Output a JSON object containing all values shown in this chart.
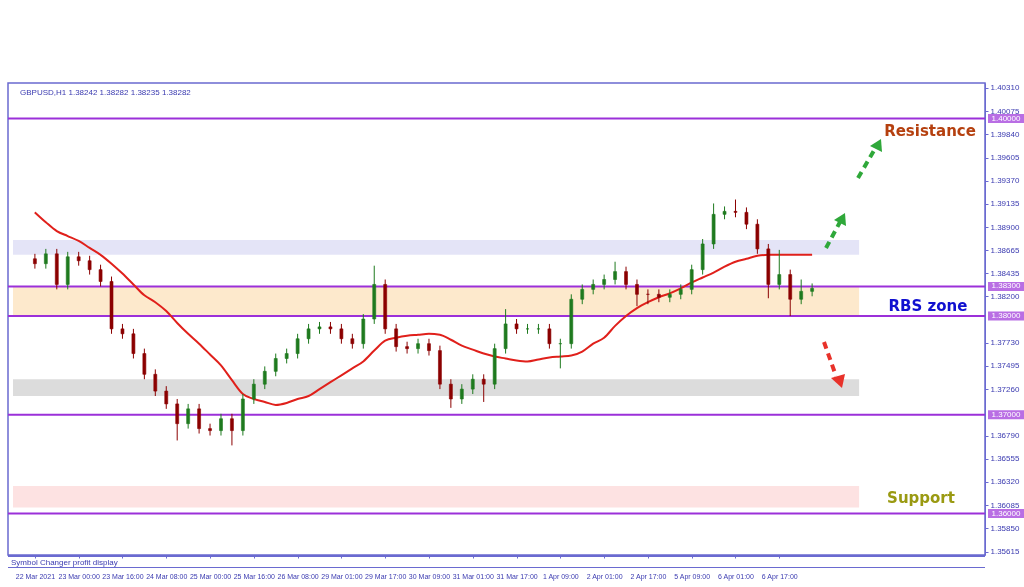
{
  "chart_data": {
    "type": "candlestick",
    "title": "GBPUSD,H1  1.38242 1.38282 1.38235 1.38282",
    "categories": [
      "22 Mar 2021",
      null,
      null,
      null,
      "23 Mar 00:00",
      null,
      null,
      null,
      "23 Mar 16:00",
      null,
      null,
      null,
      "24 Mar 08:00",
      null,
      null,
      null,
      "25 Mar 00:00",
      null,
      null,
      null,
      "25 Mar 16:00",
      null,
      null,
      null,
      "26 Mar 08:00",
      null,
      null,
      null,
      "29 Mar 01:00",
      null,
      null,
      null,
      "29 Mar 17:00",
      null,
      null,
      null,
      "30 Mar 09:00",
      null,
      null,
      null,
      "31 Mar 01:00",
      null,
      null,
      null,
      "31 Mar 17:00",
      null,
      null,
      null,
      "1 Apr 09:00",
      null,
      null,
      null,
      "2 Apr 01:00",
      null,
      null,
      null,
      "2 Apr 17:00",
      null,
      null,
      null,
      "5 Apr 09:00",
      null,
      null,
      null,
      "6 Apr 01:00",
      null,
      null,
      null,
      "6 Apr 17:00",
      null,
      null,
      null
    ],
    "ohlc": [
      [
        1.3858,
        1.3863,
        1.3848,
        1.3853
      ],
      [
        1.3853,
        1.3868,
        1.3848,
        1.3863
      ],
      [
        1.3863,
        1.3868,
        1.3827,
        1.3832
      ],
      [
        1.3832,
        1.3865,
        1.3827,
        1.386
      ],
      [
        1.386,
        1.3865,
        1.3851,
        1.3856
      ],
      [
        1.3856,
        1.3861,
        1.3842,
        1.3847
      ],
      [
        1.3847,
        1.3852,
        1.383,
        1.3835
      ],
      [
        1.3835,
        1.384,
        1.3782,
        1.3787
      ],
      [
        1.3787,
        1.3792,
        1.3777,
        1.3782
      ],
      [
        1.3782,
        1.3787,
        1.3757,
        1.3762
      ],
      [
        1.3762,
        1.3767,
        1.3736,
        1.3741
      ],
      [
        1.3741,
        1.3746,
        1.3719,
        1.3724
      ],
      [
        1.3724,
        1.3729,
        1.3706,
        1.3711
      ],
      [
        1.3711,
        1.3716,
        1.3674,
        1.3691
      ],
      [
        1.3691,
        1.3711,
        1.3686,
        1.3706
      ],
      [
        1.3706,
        1.3711,
        1.3681,
        1.3686
      ],
      [
        1.3686,
        1.3691,
        1.3679,
        1.3684
      ],
      [
        1.3684,
        1.3701,
        1.3679,
        1.3696
      ],
      [
        1.3696,
        1.3701,
        1.3669,
        1.3684
      ],
      [
        1.3684,
        1.3721,
        1.3679,
        1.3716
      ],
      [
        1.3716,
        1.3736,
        1.3711,
        1.3731
      ],
      [
        1.3731,
        1.3749,
        1.3726,
        1.3744
      ],
      [
        1.3744,
        1.3762,
        1.3739,
        1.3757
      ],
      [
        1.3757,
        1.3767,
        1.3752,
        1.3762
      ],
      [
        1.3762,
        1.3782,
        1.3757,
        1.3777
      ],
      [
        1.3777,
        1.3792,
        1.3772,
        1.3787
      ],
      [
        1.3787,
        1.3794,
        1.3782,
        1.3789
      ],
      [
        1.3789,
        1.3794,
        1.3782,
        1.3787
      ],
      [
        1.3787,
        1.3792,
        1.3772,
        1.3777
      ],
      [
        1.3777,
        1.3782,
        1.3767,
        1.3772
      ],
      [
        1.3772,
        1.3802,
        1.3767,
        1.3797
      ],
      [
        1.3797,
        1.3851,
        1.3792,
        1.3832
      ],
      [
        1.3832,
        1.3837,
        1.3782,
        1.3787
      ],
      [
        1.3787,
        1.3792,
        1.3764,
        1.3769
      ],
      [
        1.3769,
        1.3774,
        1.3762,
        1.3767
      ],
      [
        1.3767,
        1.3777,
        1.3762,
        1.3772
      ],
      [
        1.3772,
        1.3777,
        1.376,
        1.3765
      ],
      [
        1.3765,
        1.377,
        1.3726,
        1.3731
      ],
      [
        1.3731,
        1.3736,
        1.3707,
        1.3716
      ],
      [
        1.3716,
        1.3731,
        1.3711,
        1.3726
      ],
      [
        1.3726,
        1.3741,
        1.3721,
        1.3736
      ],
      [
        1.3736,
        1.3741,
        1.3713,
        1.3731
      ],
      [
        1.3731,
        1.3772,
        1.3726,
        1.3767
      ],
      [
        1.3767,
        1.3807,
        1.3762,
        1.3792
      ],
      [
        1.3792,
        1.3797,
        1.3782,
        1.3787
      ],
      [
        1.3787,
        1.3792,
        1.3782,
        1.3787
      ],
      [
        1.3787,
        1.3792,
        1.3782,
        1.3787
      ],
      [
        1.3787,
        1.3792,
        1.3767,
        1.3772
      ],
      [
        1.3772,
        1.3777,
        1.3747,
        1.3772
      ],
      [
        1.3772,
        1.3822,
        1.3767,
        1.3817
      ],
      [
        1.3817,
        1.3832,
        1.3812,
        1.3827
      ],
      [
        1.3827,
        1.3837,
        1.3822,
        1.3832
      ],
      [
        1.3832,
        1.3842,
        1.3827,
        1.3837
      ],
      [
        1.3837,
        1.3855,
        1.3832,
        1.3845
      ],
      [
        1.3845,
        1.385,
        1.3827,
        1.3832
      ],
      [
        1.3832,
        1.3837,
        1.381,
        1.3822
      ],
      [
        1.3822,
        1.3827,
        1.3812,
        1.3822
      ],
      [
        1.3822,
        1.3827,
        1.3814,
        1.3819
      ],
      [
        1.3819,
        1.3827,
        1.3814,
        1.3822
      ],
      [
        1.3822,
        1.3832,
        1.3817,
        1.3827
      ],
      [
        1.3827,
        1.3852,
        1.3822,
        1.3847
      ],
      [
        1.3847,
        1.3878,
        1.3842,
        1.3873
      ],
      [
        1.3873,
        1.3914,
        1.3868,
        1.3903
      ],
      [
        1.3903,
        1.3911,
        1.3898,
        1.3906
      ],
      [
        1.3906,
        1.3918,
        1.39,
        1.3905
      ],
      [
        1.3905,
        1.391,
        1.3888,
        1.3893
      ],
      [
        1.3893,
        1.3898,
        1.3863,
        1.3868
      ],
      [
        1.3868,
        1.3873,
        1.3818,
        1.3832
      ],
      [
        1.3832,
        1.3867,
        1.3827,
        1.3842
      ],
      [
        1.3842,
        1.3847,
        1.38,
        1.3817
      ],
      [
        1.3817,
        1.3837,
        1.3812,
        1.3825
      ],
      [
        1.3825,
        1.3833,
        1.382,
        1.3828
      ]
    ],
    "colors": [
      "#8b0000",
      "#1f7a1f",
      "#8b0000",
      "#1f7a1f",
      "#8b0000",
      "#8b0000",
      "#8b0000",
      "#8b0000",
      "#8b0000",
      "#8b0000",
      "#8b0000",
      "#8b0000",
      "#8b0000",
      "#8b0000",
      "#1f7a1f",
      "#8b0000",
      "#8b0000",
      "#1f7a1f",
      "#8b0000",
      "#1f7a1f",
      "#1f7a1f",
      "#1f7a1f",
      "#1f7a1f",
      "#1f7a1f",
      "#1f7a1f",
      "#1f7a1f",
      "#1f7a1f",
      "#8b0000",
      "#8b0000",
      "#8b0000",
      "#1f7a1f",
      "#1f7a1f",
      "#8b0000",
      "#8b0000",
      "#8b0000",
      "#1f7a1f",
      "#8b0000",
      "#8b0000",
      "#8b0000",
      "#1f7a1f",
      "#1f7a1f",
      "#8b0000",
      "#1f7a1f",
      "#1f7a1f",
      "#8b0000",
      "#1f7a1f",
      "#1f7a1f",
      "#8b0000",
      "#1f7a1f",
      "#1f7a1f",
      "#1f7a1f",
      "#1f7a1f",
      "#1f7a1f",
      "#1f7a1f",
      "#8b0000",
      "#8b0000",
      "#8b0000",
      "#8b0000",
      "#1f7a1f",
      "#1f7a1f",
      "#1f7a1f",
      "#1f7a1f",
      "#1f7a1f",
      "#1f7a1f",
      "#8b0000",
      "#8b0000",
      "#8b0000",
      "#8b0000",
      "#1f7a1f",
      "#8b0000",
      "#1f7a1f",
      "#1f7a1f"
    ],
    "series": [
      {
        "type": "line",
        "color": "#e0201b",
        "values": [
          1.3905,
          1.3895,
          1.3886,
          1.3881,
          1.3876,
          1.3869,
          1.3862,
          1.3853,
          1.3843,
          1.3832,
          1.3821,
          1.3814,
          1.3805,
          1.3793,
          1.3782,
          1.3772,
          1.3761,
          1.375,
          1.3735,
          1.3721,
          1.3716,
          1.3713,
          1.371,
          1.3712,
          1.3716,
          1.3719,
          1.3726,
          1.3733,
          1.374,
          1.3747,
          1.3754,
          1.3765,
          1.3775,
          1.3778,
          1.378,
          1.3781,
          1.3782,
          1.3781,
          1.3776,
          1.377,
          1.3766,
          1.3762,
          1.3759,
          1.3757,
          1.3755,
          1.3754,
          1.3756,
          1.3758,
          1.3759,
          1.376,
          1.3764,
          1.3772,
          1.3778,
          1.379,
          1.38,
          1.3808,
          1.3814,
          1.3819,
          1.3823,
          1.3828,
          1.3834,
          1.3839,
          1.3844,
          1.385,
          1.3855,
          1.3858,
          1.3861,
          1.3862,
          1.3862,
          1.3862,
          1.3862,
          1.3862
        ]
      }
    ],
    "ylim": [
      1.3558,
      1.4036
    ],
    "yticks": [
      {
        "value": 1.4031,
        "label": "1.40310"
      },
      {
        "value": 1.40075,
        "label": "1.40075"
      },
      {
        "value": 1.3984,
        "label": "1.39840"
      },
      {
        "value": 1.39605,
        "label": "1.39605"
      },
      {
        "value": 1.3937,
        "label": "1.39370"
      },
      {
        "value": 1.39135,
        "label": "1.39135"
      },
      {
        "value": 1.389,
        "label": "1.38900"
      },
      {
        "value": 1.38665,
        "label": "1.38665"
      },
      {
        "value": 1.38435,
        "label": "1.38435"
      },
      {
        "value": 1.382,
        "label": "1.38200"
      },
      {
        "value": 1.3773,
        "label": "1.37730"
      },
      {
        "value": 1.37495,
        "label": "1.37495"
      },
      {
        "value": 1.3726,
        "label": "1.37260"
      },
      {
        "value": 1.3679,
        "label": "1.36790"
      },
      {
        "value": 1.36555,
        "label": "1.36555"
      },
      {
        "value": 1.3632,
        "label": "1.36320"
      },
      {
        "value": 1.36085,
        "label": "1.36085"
      },
      {
        "value": 1.3585,
        "label": "1.35850"
      },
      {
        "value": 1.35615,
        "label": "1.35615"
      }
    ],
    "ref_lines": [
      {
        "axis": "y",
        "value": 1.4,
        "label": "1.40000",
        "color": "#9b30d9"
      },
      {
        "axis": "y",
        "value": 1.383,
        "label": "1.38300",
        "color": "#9b30d9"
      },
      {
        "axis": "y",
        "value": 1.38,
        "label": "1.38000",
        "color": "#9b30d9"
      },
      {
        "axis": "y",
        "value": 1.37,
        "label": "1.37000",
        "color": "#9b30d9"
      },
      {
        "axis": "y",
        "value": 1.36,
        "label": "1.36000",
        "color": "#9b30d9"
      }
    ],
    "bands": [
      {
        "axis": "y",
        "from": 1.3862,
        "to": 1.3877,
        "color": "#e4e4f7"
      },
      {
        "axis": "y",
        "from": 1.38,
        "to": 1.383,
        "color": "#fde9cc"
      },
      {
        "axis": "y",
        "from": 1.3719,
        "to": 1.3736,
        "color": "#dcdcdc"
      },
      {
        "axis": "y",
        "from": 1.3606,
        "to": 1.3628,
        "color": "#fde2e2"
      }
    ],
    "annotations": [
      "Resistance",
      "RBS zone",
      "Support",
      "Symbol Changer profit display"
    ],
    "grid": false
  }
}
